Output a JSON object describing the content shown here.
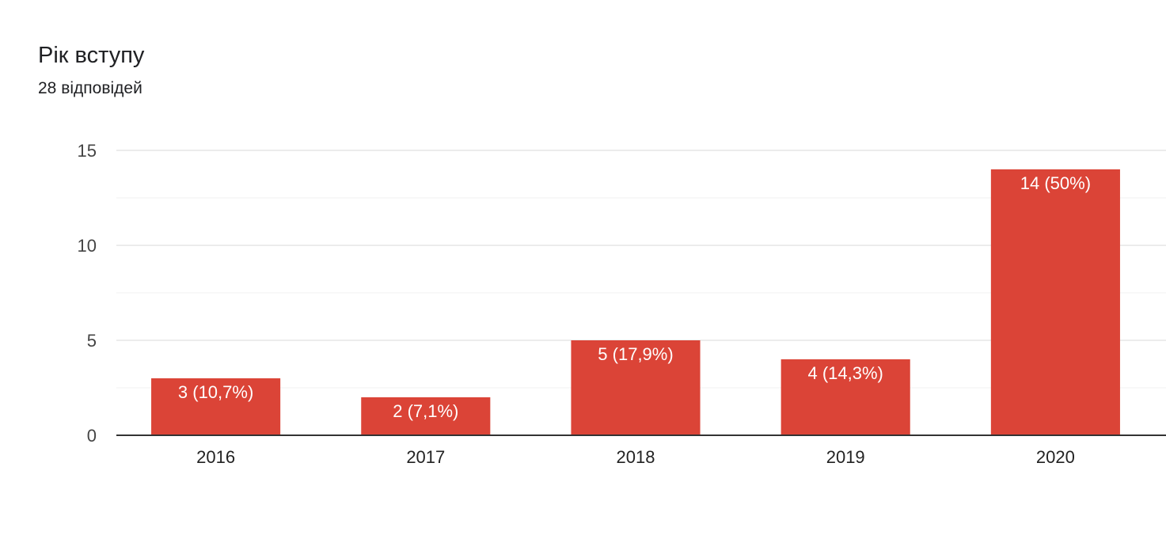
{
  "header": {
    "title": "Рік вступу",
    "subtitle": "28 відповідей"
  },
  "colors": {
    "bar": "#db4437",
    "grid_major": "#e6e6e6",
    "grid_minor": "#f2f2f2",
    "axis": "#333333"
  },
  "chart_data": {
    "type": "bar",
    "title": "",
    "xlabel": "",
    "ylabel": "",
    "categories": [
      "2016",
      "2017",
      "2018",
      "2019",
      "2020"
    ],
    "values": [
      3,
      2,
      5,
      4,
      14
    ],
    "data_labels": [
      "3 (10,7%)",
      "2 (7,1%)",
      "5 (17,9%)",
      "4 (14,3%)",
      "14 (50%)"
    ],
    "ylim": [
      0,
      15
    ],
    "yticks": [
      0,
      5,
      10,
      15
    ],
    "grid": true,
    "legend": "none"
  }
}
